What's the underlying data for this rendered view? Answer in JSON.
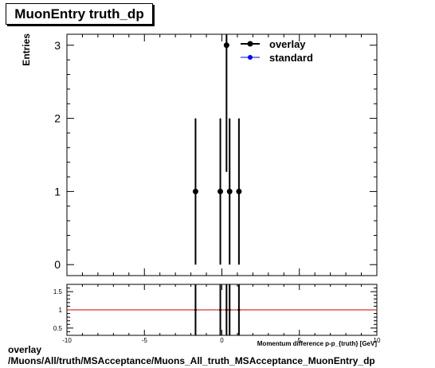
{
  "title": "MuonEntry truth_dp",
  "footer": {
    "line1": "overlay",
    "line2": "/Muons/All/truth/MSAcceptance/Muons_All_truth_MSAcceptance_MuonEntry_dp"
  },
  "colors": {
    "overlay": "#000000",
    "standard": "#0000ff",
    "ratio_line": "#cc0000"
  },
  "chart_data": [
    {
      "type": "scatter",
      "title": "MuonEntry truth_dp",
      "xlabel": "Momentum difference p-p_{truth} [GeV]",
      "ylabel": "Entries",
      "xlim": [
        -10,
        10
      ],
      "ylim": [
        -0.15,
        3.15
      ],
      "xticks": [
        -10,
        -5,
        0,
        5,
        10
      ],
      "yticks": [
        0,
        1,
        2,
        3
      ],
      "legend": "top-right",
      "series": [
        {
          "name": "overlay",
          "x": [
            -1.7,
            -0.1,
            0.3,
            0.5,
            1.1
          ],
          "y": [
            1,
            1,
            3,
            1,
            1
          ],
          "yerr": [
            1,
            1,
            1.732,
            1,
            1
          ]
        },
        {
          "name": "standard",
          "x": [],
          "y": []
        }
      ]
    },
    {
      "type": "scatter",
      "xlim": [
        -10,
        10
      ],
      "ylim": [
        0.3,
        1.7
      ],
      "yticks": [
        0.5,
        1,
        1.5
      ],
      "tick_labels": [
        "0.5",
        "1",
        "1.5"
      ],
      "reference_line": 1,
      "series": [
        {
          "x": [
            -1.7,
            -0.1,
            0.3,
            0.5,
            1.1
          ],
          "y": [
            1,
            1,
            1,
            1,
            1
          ],
          "yerr": [
            1,
            1,
            1,
            1,
            1
          ]
        }
      ]
    }
  ]
}
